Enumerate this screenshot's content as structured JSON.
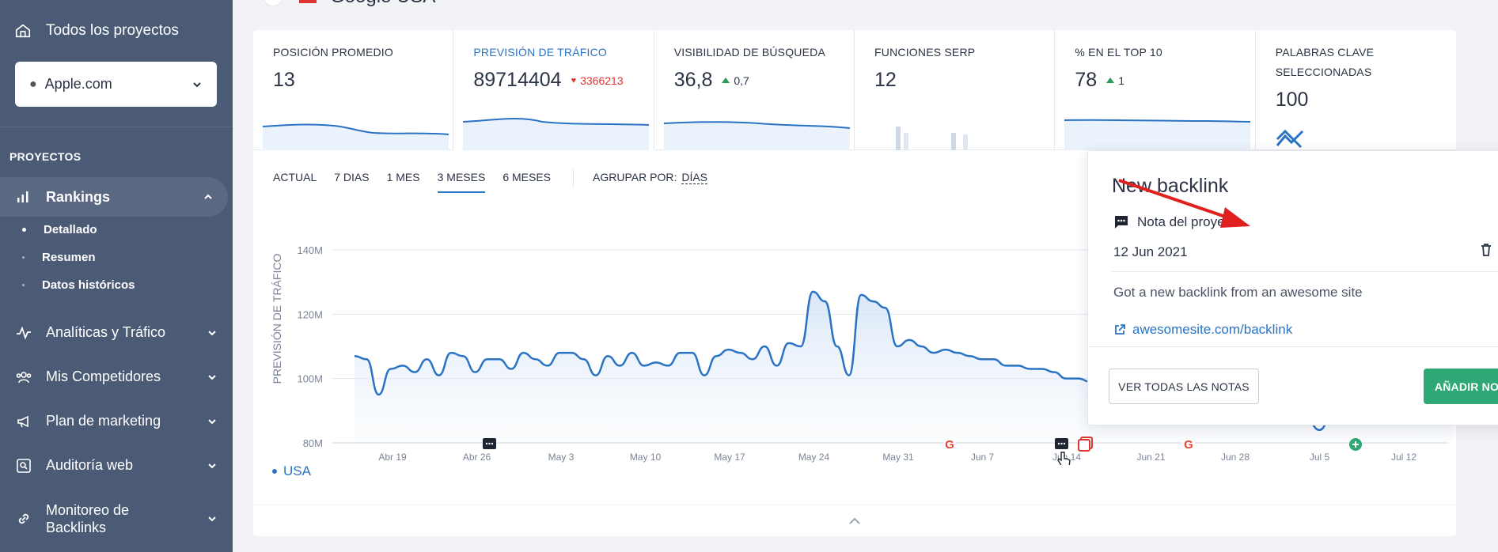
{
  "sidebar": {
    "all_projects": "Todos los proyectos",
    "project": "Apple.com",
    "section": "PROYECTOS",
    "rankings": "Rankings",
    "sub_items": [
      "Detallado",
      "Resumen",
      "Datos históricos"
    ],
    "nav": [
      "Analíticas y Tráfico",
      "Mis Competidores",
      "Plan de marketing",
      "Auditoría web"
    ],
    "backlinks_line1": "Monitoreo de",
    "backlinks_line2": "Backlinks"
  },
  "header": {
    "engine": "Google USA"
  },
  "metrics": [
    {
      "label": "POSICIÓN PROMEDIO",
      "value": "13"
    },
    {
      "label": "PREVISIÓN DE TRÁFICO",
      "value": "89714404",
      "delta": "3366213"
    },
    {
      "label": "VISIBILIDAD DE BÚSQUEDA",
      "value": "36,8",
      "delta": "0,7"
    },
    {
      "label": "FUNCIONES SERP",
      "value": "12"
    },
    {
      "label": "% EN EL TOP 10",
      "value": "78",
      "delta": "1"
    },
    {
      "label": "PALABRAS CLAVE SELECCIONADAS",
      "value": "100"
    }
  ],
  "tabs": [
    "ACTUAL",
    "7 DIAS",
    "1 MES",
    "3 MESES",
    "6 MESES"
  ],
  "active_tab": "3 MESES",
  "group_by_label": "AGRUPAR POR:",
  "group_by_value": "DÍAS",
  "legend": "USA",
  "popover": {
    "title": "New backlink",
    "type": "Nota del proyecto",
    "date": "12 Jun 2021",
    "text": "Got a new backlink from an awesome site",
    "link": "awesomesite.com/backlink",
    "btn_all": "VER TODAS LAS NOTAS",
    "btn_add": "AÑADIR NOTA"
  },
  "colors": {
    "accent": "#2a73c4",
    "sidebar": "#4b5a75",
    "green": "#2ea874",
    "red": "#d33333"
  },
  "chart_data": {
    "type": "line",
    "ylabel": "PREVISIÓN DE TRÁFICO",
    "ylim": [
      80,
      140
    ],
    "y_ticks": [
      "140M",
      "120M",
      "100M",
      "80M"
    ],
    "x_ticks": [
      "Abr 19",
      "Abr 26",
      "May 3",
      "May 10",
      "May 17",
      "May 24",
      "May 31",
      "Jun 7",
      "Jun 14",
      "Jun 21",
      "Jun 28",
      "Jul 5",
      "Jul 12"
    ],
    "series": [
      {
        "name": "USA",
        "values": [
          107,
          106,
          95,
          103,
          104,
          102,
          106,
          101,
          108,
          107,
          102,
          106,
          106,
          103,
          108,
          106,
          104,
          108,
          108,
          106,
          101,
          107,
          104,
          108,
          104,
          105,
          104,
          108,
          108,
          101,
          107,
          109,
          108,
          106,
          110,
          104,
          111,
          110,
          127,
          124,
          110,
          101,
          126,
          124,
          122,
          110,
          112,
          110,
          108,
          109,
          108,
          107,
          106,
          106,
          104,
          104,
          103,
          103,
          102,
          100,
          100,
          99,
          98,
          97,
          96,
          94,
          93,
          92,
          88,
          94,
          92,
          96,
          88,
          93,
          91,
          90,
          88,
          90,
          91,
          87,
          84,
          88,
          90,
          94,
          92,
          90,
          94,
          96,
          93,
          98,
          95,
          90
        ]
      }
    ],
    "markers": [
      "note",
      "google",
      "note",
      "backlink",
      "google",
      "add"
    ]
  }
}
